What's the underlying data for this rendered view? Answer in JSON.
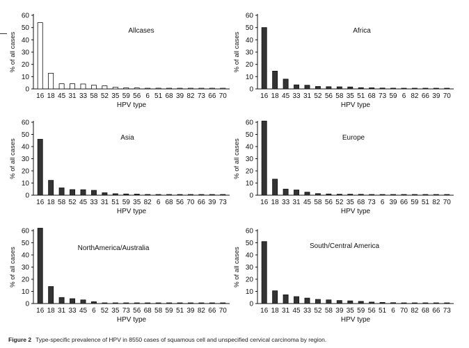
{
  "figure": {
    "caption_label": "Figure 2",
    "caption_text": "Type-specific prevalence of HPV in 8550 cases of squamous cell and unspecified cervical carcinoma by region."
  },
  "chart_data": [
    {
      "type": "bar",
      "title": "Allcases",
      "xlabel": "HPV type",
      "ylabel": "% of all cases",
      "ylim": [
        0,
        60
      ],
      "yticks": [
        0,
        10,
        20,
        30,
        40,
        50,
        60
      ],
      "bar_color": "#ffffff",
      "categories": [
        "16",
        "18",
        "45",
        "31",
        "33",
        "58",
        "52",
        "35",
        "59",
        "56",
        "6",
        "51",
        "68",
        "39",
        "82",
        "73",
        "66",
        "70"
      ],
      "values": [
        54,
        12.8,
        4.2,
        4.2,
        4.0,
        3.0,
        2.5,
        1.3,
        0.9,
        0.8,
        0.5,
        0.6,
        0.5,
        0.4,
        0.3,
        0.3,
        0.2,
        0.2
      ]
    },
    {
      "type": "bar",
      "title": "Africa",
      "xlabel": "HPV type",
      "ylabel": "% of all cases",
      "ylim": [
        0,
        60
      ],
      "yticks": [
        0,
        10,
        20,
        30,
        40,
        50,
        60
      ],
      "bar_color": "#333333",
      "categories": [
        "16",
        "18",
        "45",
        "33",
        "31",
        "52",
        "56",
        "58",
        "35",
        "51",
        "68",
        "73",
        "59",
        "6",
        "82",
        "66",
        "39",
        "70"
      ],
      "values": [
        50,
        14.5,
        8.0,
        3.3,
        3.0,
        2.0,
        1.8,
        1.7,
        1.6,
        1.0,
        0.9,
        0.7,
        0.6,
        0.5,
        0.5,
        0.4,
        0.3,
        0.3
      ]
    },
    {
      "type": "bar",
      "title": "Asia",
      "xlabel": "HPV type",
      "ylabel": "% of all cases",
      "ylim": [
        0,
        60
      ],
      "yticks": [
        0,
        10,
        20,
        30,
        40,
        50,
        60
      ],
      "bar_color": "#333333",
      "categories": [
        "16",
        "18",
        "58",
        "52",
        "45",
        "33",
        "31",
        "51",
        "59",
        "35",
        "82",
        "6",
        "68",
        "56",
        "70",
        "66",
        "39",
        "73"
      ],
      "values": [
        46,
        12.2,
        6.0,
        4.6,
        4.5,
        4.0,
        2.0,
        1.2,
        1.0,
        0.9,
        0.6,
        0.5,
        0.5,
        0.4,
        0.4,
        0.3,
        0.2,
        0.2
      ]
    },
    {
      "type": "bar",
      "title": "Europe",
      "xlabel": "HPV type",
      "ylabel": "% of all cases",
      "ylim": [
        0,
        60
      ],
      "yticks": [
        0,
        10,
        20,
        30,
        40,
        50,
        60
      ],
      "bar_color": "#333333",
      "categories": [
        "16",
        "18",
        "33",
        "31",
        "45",
        "58",
        "56",
        "52",
        "35",
        "68",
        "73",
        "6",
        "39",
        "66",
        "59",
        "51",
        "82",
        "70"
      ],
      "values": [
        61,
        13.2,
        5.0,
        4.3,
        2.5,
        1.3,
        1.0,
        0.8,
        0.8,
        0.7,
        0.5,
        0.4,
        0.4,
        0.3,
        0.3,
        0.3,
        0.2,
        0.2
      ]
    },
    {
      "type": "bar",
      "title": "NorthAmerica/Australia",
      "xlabel": "HPV type",
      "ylabel": "% of all cases",
      "ylim": [
        0,
        60
      ],
      "yticks": [
        0,
        10,
        20,
        30,
        40,
        50,
        60
      ],
      "bar_color": "#333333",
      "categories": [
        "16",
        "18",
        "31",
        "33",
        "45",
        "6",
        "52",
        "35",
        "73",
        "56",
        "68",
        "58",
        "59",
        "51",
        "39",
        "82",
        "66",
        "70"
      ],
      "values": [
        62,
        14,
        5.0,
        4.0,
        3.0,
        1.5,
        0.5,
        0.4,
        0.3,
        0.3,
        0.3,
        0.2,
        0.2,
        0.2,
        0.2,
        0.2,
        0.2,
        0.2
      ]
    },
    {
      "type": "bar",
      "title": "South/Central America",
      "xlabel": "HPV type",
      "ylabel": "% of all cases",
      "ylim": [
        0,
        60
      ],
      "yticks": [
        0,
        10,
        20,
        30,
        40,
        50,
        60
      ],
      "bar_color": "#333333",
      "categories": [
        "16",
        "18",
        "31",
        "45",
        "33",
        "52",
        "58",
        "39",
        "35",
        "59",
        "56",
        "51",
        "6",
        "70",
        "82",
        "68",
        "66",
        "73"
      ],
      "values": [
        51,
        10.5,
        7.2,
        5.7,
        4.5,
        3.4,
        3.0,
        2.5,
        2.2,
        1.8,
        1.2,
        0.9,
        0.7,
        0.5,
        0.4,
        0.3,
        0.2,
        0.2
      ]
    }
  ]
}
